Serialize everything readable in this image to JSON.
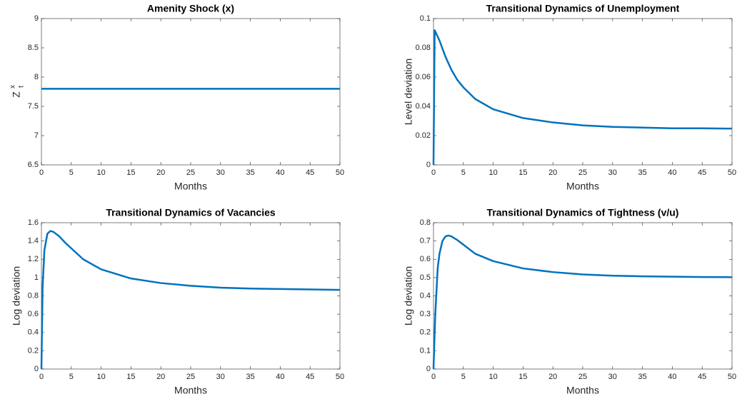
{
  "chart_data": [
    {
      "type": "line",
      "title": "Amenity Shock (x)",
      "xlabel": "Months",
      "ylabel": {
        "base": "Z",
        "sup": "x",
        "sub": "t"
      },
      "x": [
        0,
        50
      ],
      "values": [
        7.8,
        7.8
      ],
      "color": "#0072bd",
      "xlim": [
        0,
        50
      ],
      "xticks": [
        0,
        5,
        10,
        15,
        20,
        25,
        30,
        35,
        40,
        45,
        50
      ],
      "ylim": [
        6.5,
        9
      ],
      "yticks": [
        6.5,
        7,
        7.5,
        8,
        8.5,
        9
      ]
    },
    {
      "type": "line",
      "title": "Transitional Dynamics of Unemployment",
      "xlabel": "Months",
      "ylabel": "Level deviation",
      "x": [
        0,
        0.2,
        1,
        2,
        3,
        4,
        5,
        7,
        10,
        15,
        20,
        25,
        30,
        35,
        40,
        45,
        50
      ],
      "values": [
        0,
        0.092,
        0.085,
        0.074,
        0.065,
        0.058,
        0.053,
        0.045,
        0.038,
        0.032,
        0.029,
        0.027,
        0.026,
        0.0255,
        0.025,
        0.025,
        0.0248
      ],
      "color": "#0072bd",
      "xlim": [
        0,
        50
      ],
      "xticks": [
        0,
        5,
        10,
        15,
        20,
        25,
        30,
        35,
        40,
        45,
        50
      ],
      "ylim": [
        0,
        0.1
      ],
      "yticks": [
        0,
        0.02,
        0.04,
        0.06,
        0.08,
        0.1
      ]
    },
    {
      "type": "line",
      "title": "Transitional Dynamics of Vacancies",
      "xlabel": "Months",
      "ylabel": "Log deviation",
      "x": [
        0,
        0.2,
        0.5,
        1,
        1.5,
        2,
        3,
        4,
        5,
        7,
        10,
        15,
        20,
        25,
        30,
        35,
        40,
        45,
        50
      ],
      "values": [
        0,
        0.9,
        1.3,
        1.48,
        1.51,
        1.5,
        1.45,
        1.38,
        1.32,
        1.2,
        1.09,
        0.99,
        0.94,
        0.91,
        0.89,
        0.88,
        0.875,
        0.87,
        0.865
      ],
      "color": "#0072bd",
      "xlim": [
        0,
        50
      ],
      "xticks": [
        0,
        5,
        10,
        15,
        20,
        25,
        30,
        35,
        40,
        45,
        50
      ],
      "ylim": [
        0,
        1.6
      ],
      "yticks": [
        0,
        0.2,
        0.4,
        0.6,
        0.8,
        1,
        1.2,
        1.4,
        1.6
      ]
    },
    {
      "type": "line",
      "title": "Transitional Dynamics of Tightness (v/u)",
      "xlabel": "Months",
      "ylabel": "Log deviation",
      "x": [
        0,
        0.3,
        0.7,
        1,
        1.5,
        2,
        2.5,
        3,
        4,
        5,
        7,
        10,
        15,
        20,
        25,
        30,
        35,
        40,
        45,
        50
      ],
      "values": [
        0,
        0.3,
        0.55,
        0.63,
        0.7,
        0.725,
        0.73,
        0.725,
        0.705,
        0.68,
        0.63,
        0.59,
        0.55,
        0.53,
        0.517,
        0.51,
        0.507,
        0.505,
        0.503,
        0.502
      ],
      "color": "#0072bd",
      "xlim": [
        0,
        50
      ],
      "xticks": [
        0,
        5,
        10,
        15,
        20,
        25,
        30,
        35,
        40,
        45,
        50
      ],
      "ylim": [
        0,
        0.8
      ],
      "yticks": [
        0,
        0.1,
        0.2,
        0.3,
        0.4,
        0.5,
        0.6,
        0.7,
        0.8
      ]
    }
  ]
}
